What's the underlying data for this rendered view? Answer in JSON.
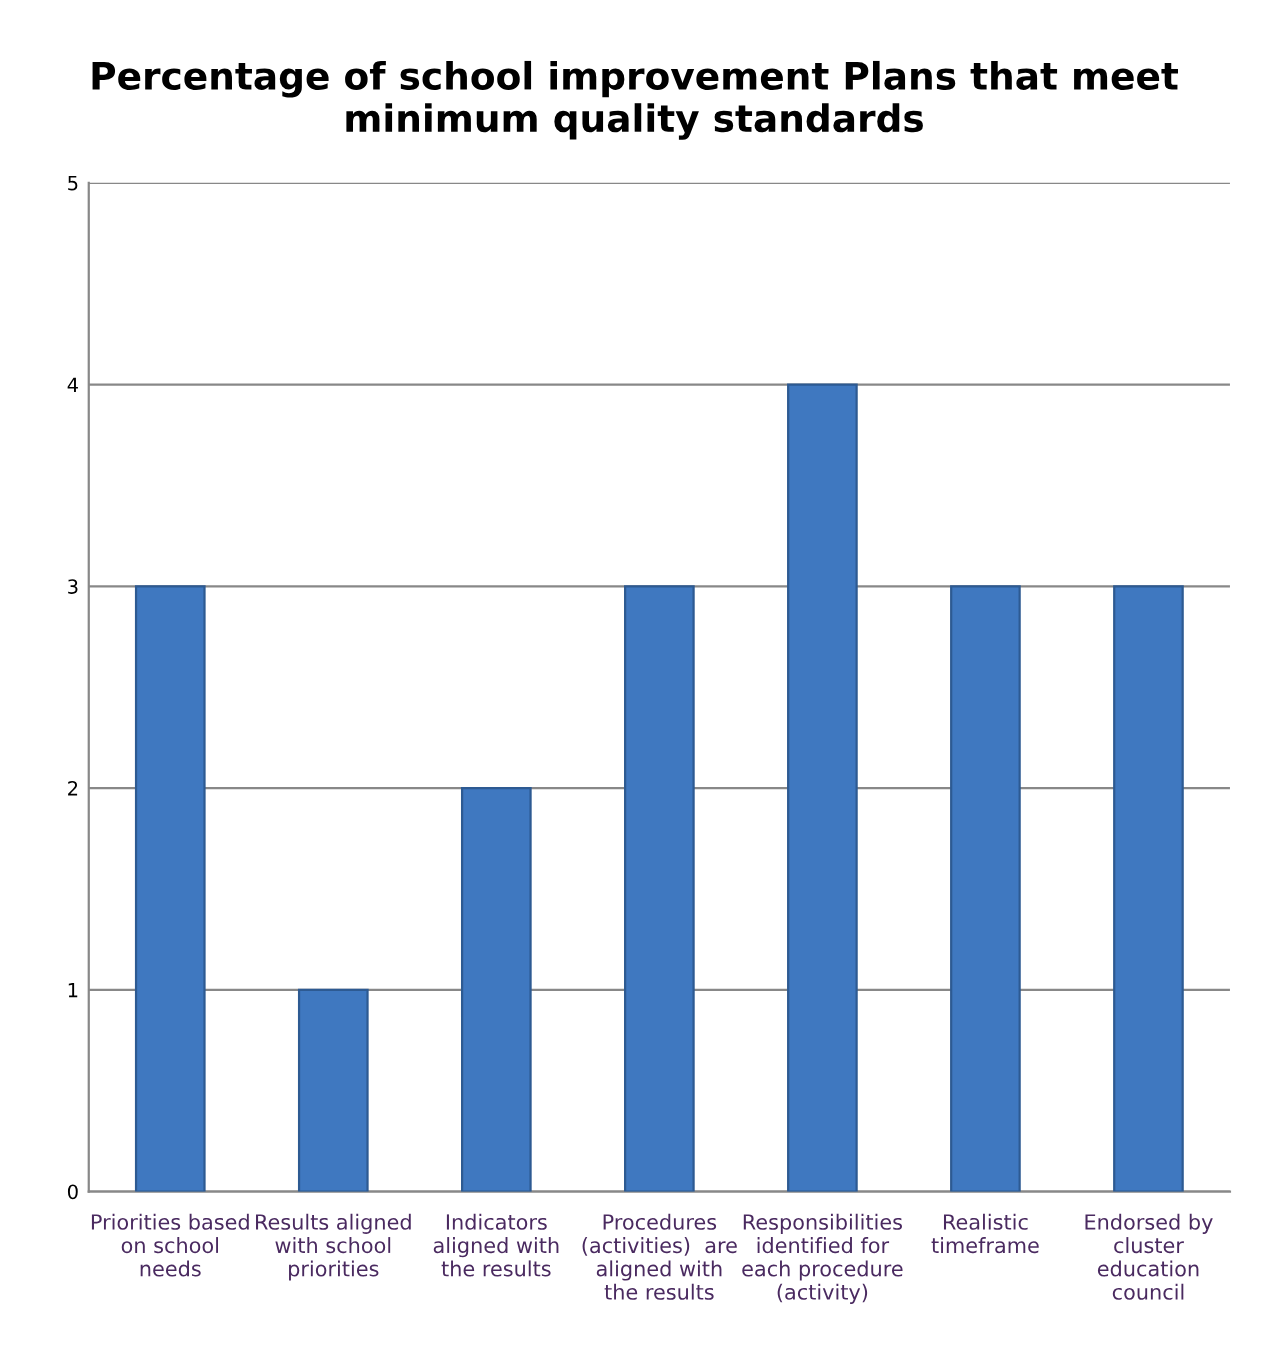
{
  "chart_data": {
    "type": "bar",
    "title": "Percentage of school improvement Plans that meet\nminimum quality standards",
    "categories": [
      "Priorities based\non school\nneeds",
      "Results aligned\nwith school\npriorities",
      "Indicators\naligned with\nthe results",
      "Procedures\n(activities)  are\naligned with\nthe results",
      "Responsibilities\nidentified for\neach procedure\n(activity)",
      "Realistic\ntimeframe",
      "Endorsed by\ncluster\neducation\ncouncil"
    ],
    "values": [
      3,
      1,
      2,
      3,
      4,
      3,
      3
    ],
    "color": "#3f78c0",
    "ylim": [
      0,
      5
    ],
    "yticks": [
      0,
      1,
      2,
      3,
      4,
      5
    ],
    "grid": "y",
    "legend": false
  }
}
